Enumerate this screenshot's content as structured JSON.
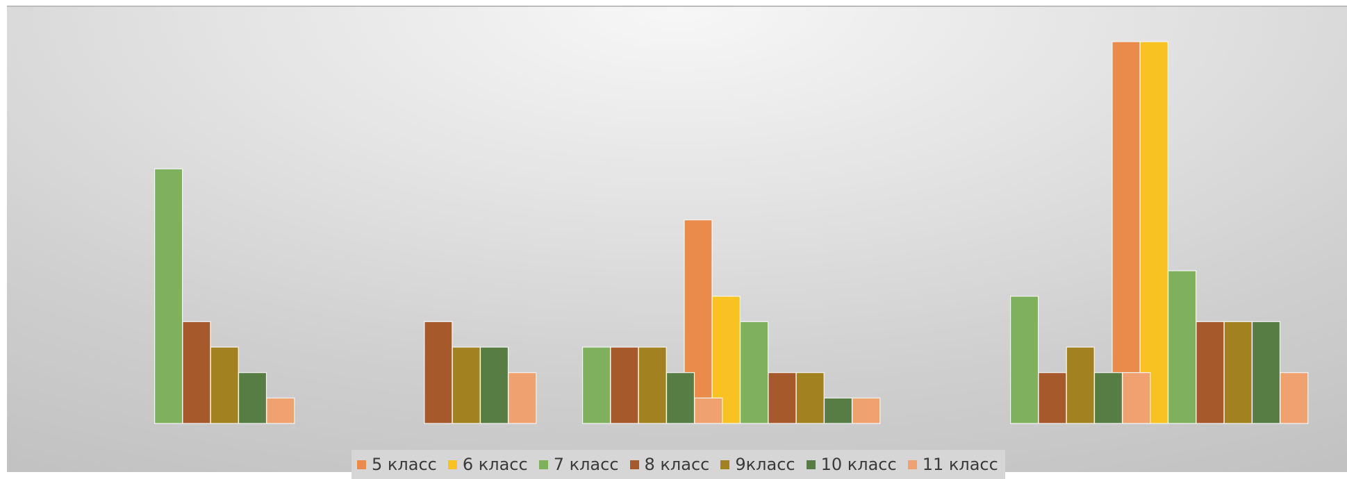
{
  "chart_data": {
    "type": "bar",
    "title": "",
    "xlabel": "",
    "ylabel": "",
    "ylim": [
      0,
      15
    ],
    "grid": false,
    "legend_position": "bottom",
    "categories": [
      "",
      "",
      "",
      "",
      "",
      ""
    ],
    "series": [
      {
        "name": "5 класс",
        "color": "#EA8B4B",
        "values": [
          0,
          0,
          0,
          8,
          0,
          15
        ]
      },
      {
        "name": "6 класс",
        "color": "#F8C322",
        "values": [
          0,
          0,
          0,
          5,
          0,
          15
        ]
      },
      {
        "name": "7 класс",
        "color": "#7FB05E",
        "values": [
          10,
          0,
          3,
          4,
          5,
          6
        ]
      },
      {
        "name": "8 класс",
        "color": "#A65A2B",
        "values": [
          4,
          4,
          3,
          2,
          2,
          4
        ]
      },
      {
        "name": "9класс",
        "color": "#A28220",
        "values": [
          3,
          3,
          3,
          2,
          3,
          4
        ]
      },
      {
        "name": "10 класс",
        "color": "#587D44",
        "values": [
          2,
          3,
          2,
          1,
          2,
          4
        ]
      },
      {
        "name": "11 класс",
        "color": "#EFA26F",
        "values": [
          1,
          2,
          1,
          1,
          2,
          2
        ]
      }
    ]
  }
}
